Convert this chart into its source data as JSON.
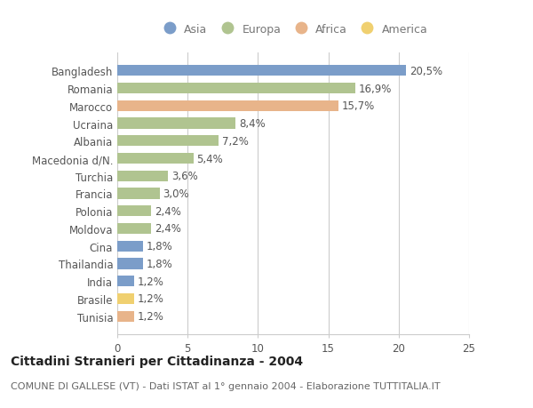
{
  "countries": [
    "Bangladesh",
    "Romania",
    "Marocco",
    "Ucraina",
    "Albania",
    "Macedonia d/N.",
    "Turchia",
    "Francia",
    "Polonia",
    "Moldova",
    "Cina",
    "Thailandia",
    "India",
    "Brasile",
    "Tunisia"
  ],
  "values": [
    20.5,
    16.9,
    15.7,
    8.4,
    7.2,
    5.4,
    3.6,
    3.0,
    2.4,
    2.4,
    1.8,
    1.8,
    1.2,
    1.2,
    1.2
  ],
  "labels": [
    "20,5%",
    "16,9%",
    "15,7%",
    "8,4%",
    "7,2%",
    "5,4%",
    "3,6%",
    "3,0%",
    "2,4%",
    "2,4%",
    "1,8%",
    "1,8%",
    "1,2%",
    "1,2%",
    "1,2%"
  ],
  "continents": [
    "Asia",
    "Europa",
    "Africa",
    "Europa",
    "Europa",
    "Europa",
    "Europa",
    "Europa",
    "Europa",
    "Europa",
    "Asia",
    "Asia",
    "Asia",
    "America",
    "Africa"
  ],
  "continent_colors": {
    "Asia": "#7b9dc9",
    "Europa": "#b0c490",
    "Africa": "#e8b48a",
    "America": "#f0d070"
  },
  "legend_order": [
    "Asia",
    "Europa",
    "Africa",
    "America"
  ],
  "title": "Cittadini Stranieri per Cittadinanza - 2004",
  "subtitle": "COMUNE DI GALLESE (VT) - Dati ISTAT al 1° gennaio 2004 - Elaborazione TUTTITALIA.IT",
  "xlabel_values": [
    0,
    5,
    10,
    15,
    20,
    25
  ],
  "xlim": [
    0,
    25
  ],
  "background_color": "#ffffff",
  "grid_color": "#cccccc",
  "bar_height": 0.62,
  "label_fontsize": 8.5,
  "title_fontsize": 10,
  "subtitle_fontsize": 8,
  "tick_fontsize": 8.5,
  "legend_fontsize": 9
}
